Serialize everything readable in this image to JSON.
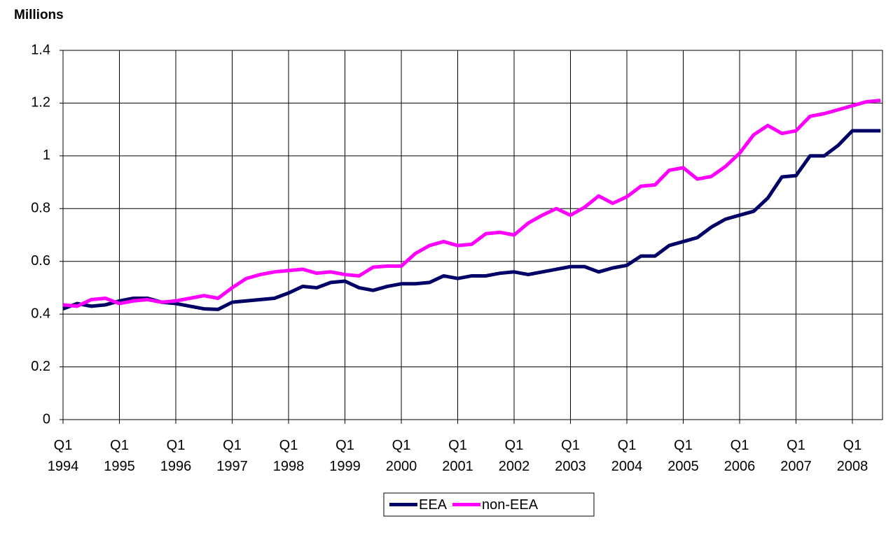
{
  "chart_data": {
    "type": "line",
    "title": "Millions",
    "categories": [
      "Q1\n1994",
      null,
      null,
      null,
      "Q1\n1995",
      null,
      null,
      null,
      "Q1\n1996",
      null,
      null,
      null,
      "Q1\n1997",
      null,
      null,
      null,
      "Q1\n1998",
      null,
      null,
      null,
      "Q1\n1999",
      null,
      null,
      null,
      "Q1\n2000",
      null,
      null,
      null,
      "Q1\n2001",
      null,
      null,
      null,
      "Q1\n2002",
      null,
      null,
      null,
      "Q1\n2003",
      null,
      null,
      null,
      "Q1\n2004",
      null,
      null,
      null,
      "Q1\n2005",
      null,
      null,
      null,
      "Q1\n2006",
      null,
      null,
      null,
      "Q1\n2007",
      null,
      null,
      null,
      "Q1\n2008",
      null,
      null
    ],
    "series": [
      {
        "name": "EEA",
        "color": "#000066",
        "values": [
          0.42,
          0.44,
          0.43,
          0.435,
          0.45,
          0.46,
          0.46,
          0.445,
          0.44,
          0.43,
          0.42,
          0.418,
          0.445,
          0.45,
          0.455,
          0.46,
          0.48,
          0.505,
          0.5,
          0.52,
          0.525,
          0.5,
          0.49,
          0.505,
          0.515,
          0.515,
          0.52,
          0.545,
          0.535,
          0.545,
          0.545,
          0.555,
          0.56,
          0.55,
          0.56,
          0.57,
          0.58,
          0.58,
          0.56,
          0.575,
          0.585,
          0.62,
          0.62,
          0.66,
          0.675,
          0.69,
          0.73,
          0.76,
          0.775,
          0.79,
          0.84,
          0.92,
          0.925,
          1.0,
          1.0,
          1.04,
          1.095,
          1.095,
          1.095
        ]
      },
      {
        "name": "non-EEA",
        "color": "#ff00ff",
        "values": [
          0.435,
          0.43,
          0.455,
          0.46,
          0.44,
          0.45,
          0.455,
          0.445,
          0.45,
          0.46,
          0.47,
          0.46,
          0.5,
          0.535,
          0.55,
          0.56,
          0.565,
          0.57,
          0.555,
          0.56,
          0.55,
          0.545,
          0.578,
          0.582,
          0.582,
          0.63,
          0.66,
          0.675,
          0.66,
          0.665,
          0.705,
          0.71,
          0.7,
          0.745,
          0.775,
          0.8,
          0.775,
          0.805,
          0.848,
          0.82,
          0.845,
          0.885,
          0.89,
          0.945,
          0.955,
          0.912,
          0.922,
          0.96,
          1.01,
          1.08,
          1.115,
          1.085,
          1.095,
          1.15,
          1.16,
          1.175,
          1.19,
          1.205,
          1.21
        ]
      }
    ],
    "ylim": [
      0,
      1.4
    ],
    "yticks": [
      0,
      0.2,
      0.4,
      0.6,
      0.8,
      1,
      1.2,
      1.4
    ],
    "grid": true,
    "legend": "bottom"
  }
}
